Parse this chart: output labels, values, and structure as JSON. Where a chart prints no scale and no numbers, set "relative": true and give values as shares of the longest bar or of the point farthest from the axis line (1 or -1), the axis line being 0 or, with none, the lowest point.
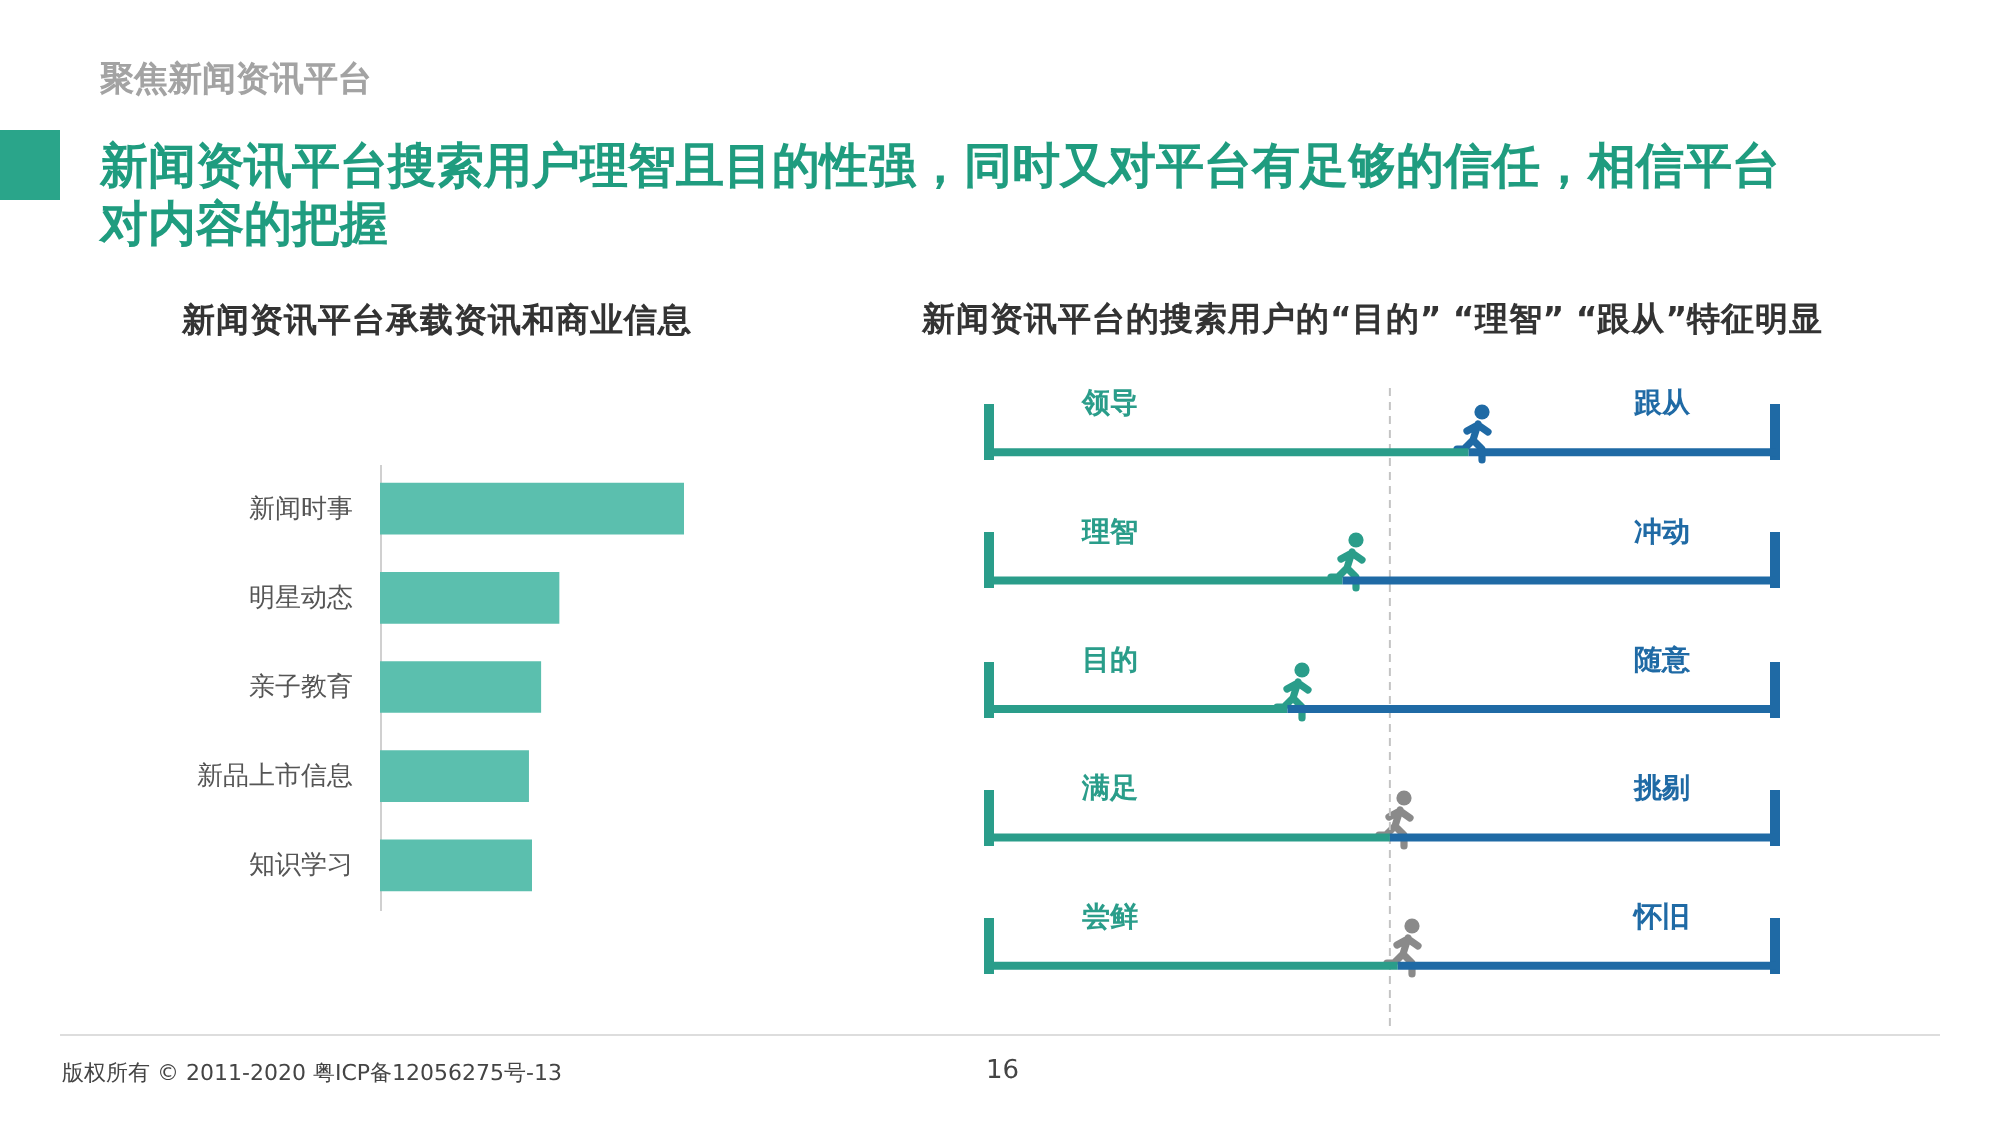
{
  "chart_data": [
    {
      "type": "bar",
      "orientation": "horizontal",
      "relative": true,
      "title": "新闻资讯平台承载资讯和商业信息",
      "categories": [
        "新闻时事",
        "明星动态",
        "亲子教育",
        "新品上市信息",
        "知识学习"
      ],
      "values": [
        1,
        0.59,
        0.53,
        0.49,
        0.5
      ],
      "color": "#5bbfae",
      "annotations": [
        "聚焦新闻资讯平台",
        "新闻资讯平台搜索用户理智且目的性强，同时又对平台有足够的信任，相信平台对内容的把握",
        "版权所有 © 2011-2020 粤ICP备12056275号-13",
        "16"
      ]
    },
    {
      "type": "bar",
      "orientation": "horizontal",
      "stacked": true,
      "relative": true,
      "title": "新闻资讯平台的搜索用户的“目的” “理智” “跟从”特征明显",
      "categories": [
        "领导",
        "理智",
        "目的",
        "满足",
        "尝鲜"
      ],
      "y2_categories": [
        "跟从",
        "冲动",
        "随意",
        "挑剔",
        "怀旧"
      ],
      "series": [
        {
          "color": "#2a9d8a",
          "values": [
            0.61,
            0.45,
            0.38,
            0.51,
            0.52
          ]
        },
        {
          "color": "#1f6aa5",
          "values": [
            0.39,
            0.55,
            0.62,
            0.49,
            0.48
          ]
        }
      ],
      "ref_lines": [
        {
          "axis": "x",
          "value": 0.51,
          "color": "#c4c4c4",
          "line_style": "dashed"
        }
      ]
    }
  ]
}
